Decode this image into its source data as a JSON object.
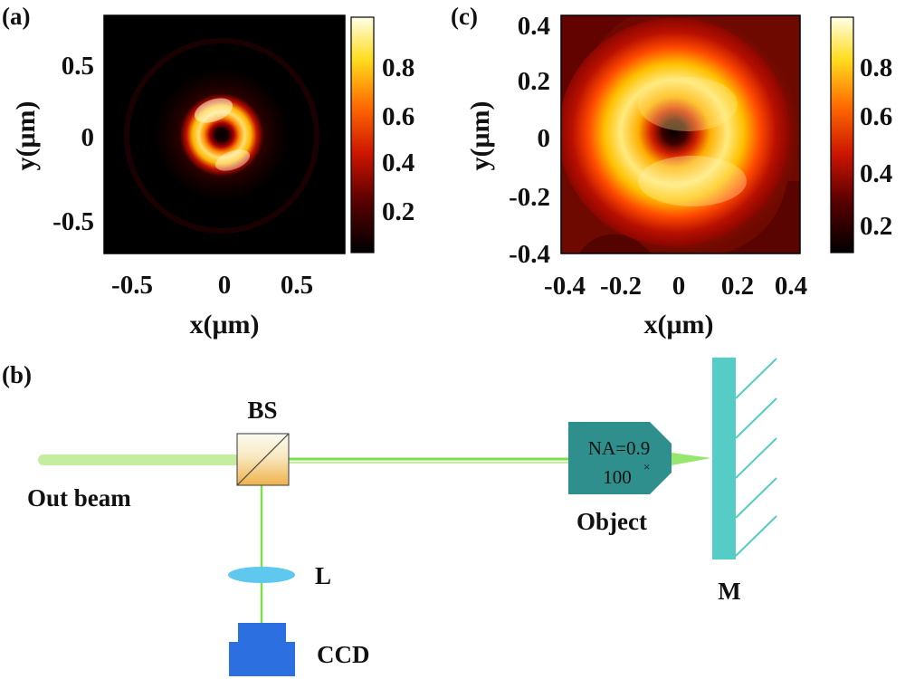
{
  "panel_a": {
    "label": "(a)",
    "xlabel": "x(μm)",
    "ylabel": "y(μm)",
    "xticks": [
      "-0.5",
      "0",
      "0.5"
    ],
    "yticks": [
      "0.5",
      "0",
      "-0.5"
    ],
    "colorbar_ticks": [
      "0.8",
      "0.6",
      "0.4",
      "0.2"
    ]
  },
  "panel_c": {
    "label": "(c)",
    "xlabel": "x(μm)",
    "ylabel": "y(μm)",
    "xticks": [
      "-0.4",
      "-0.2",
      "0",
      "0.2",
      "0.4"
    ],
    "yticks": [
      "0.4",
      "0.2",
      "0",
      "-0.2",
      "-0.4"
    ],
    "colorbar_ticks": [
      "0.8",
      "0.6",
      "0.4",
      "0.2"
    ]
  },
  "panel_b": {
    "label": "(b)",
    "bs_label": "BS",
    "out_beam_label": "Out beam",
    "lens_label": "L",
    "ccd_label": "CCD",
    "objective_na": "NA=0.9",
    "objective_mag": "100",
    "objective_mag_sup": "×",
    "objective_label": "Object",
    "mirror_label": "M"
  },
  "colors": {
    "beam": "#7de04a",
    "beam_wide": "#c4eda0",
    "objective": "#2f8f8c",
    "mirror": "#56ccc6",
    "lens": "#5fc8ee",
    "ccd": "#2b6fe0",
    "bs_top": "#fbfbf0",
    "bs_bottom": "#f0b24a"
  }
}
